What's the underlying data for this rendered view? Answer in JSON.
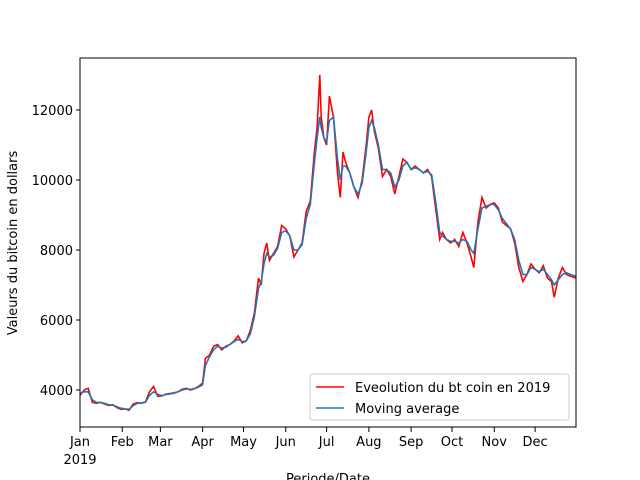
{
  "chart_data": {
    "type": "line",
    "xlabel": "Periode/Date",
    "ylabel": "Valeurs du bitcoin en dollars",
    "x_year_label": "2019",
    "x": [
      0,
      3,
      6,
      9,
      12,
      15,
      18,
      21,
      24,
      27,
      30,
      33,
      36,
      39,
      42,
      45,
      48,
      51,
      54,
      57,
      60,
      63,
      66,
      69,
      72,
      75,
      78,
      81,
      84,
      87,
      90,
      92,
      95,
      98,
      101,
      104,
      107,
      110,
      113,
      116,
      119,
      122,
      125,
      128,
      131,
      133,
      135,
      137,
      139,
      142,
      145,
      148,
      151,
      154,
      157,
      160,
      163,
      166,
      169,
      172,
      174,
      176,
      177,
      179,
      181,
      183,
      186,
      189,
      191,
      193,
      195,
      198,
      201,
      204,
      207,
      210,
      212,
      214,
      216,
      219,
      222,
      225,
      228,
      231,
      234,
      237,
      240,
      243,
      246,
      249,
      252,
      255,
      258,
      261,
      264,
      266,
      269,
      272,
      275,
      278,
      281,
      284,
      287,
      289,
      292,
      295,
      298,
      301,
      304,
      307,
      310,
      313,
      316,
      319,
      322,
      325,
      328,
      331,
      334,
      337,
      340,
      343,
      346,
      348,
      351,
      354,
      357,
      360,
      364
    ],
    "series": [
      {
        "name": "Eveolution du bt coin en 2019",
        "color": "#ff0000",
        "values": [
          3850,
          4000,
          4050,
          3650,
          3620,
          3650,
          3600,
          3560,
          3580,
          3500,
          3450,
          3460,
          3420,
          3600,
          3640,
          3620,
          3660,
          3950,
          4100,
          3820,
          3830,
          3880,
          3900,
          3920,
          3950,
          4020,
          4050,
          4000,
          4040,
          4100,
          4200,
          4900,
          5000,
          5250,
          5300,
          5150,
          5250,
          5300,
          5400,
          5550,
          5350,
          5400,
          5700,
          6200,
          7200,
          7000,
          7900,
          8200,
          7700,
          7900,
          8100,
          8700,
          8600,
          8400,
          7800,
          8000,
          8200,
          9100,
          9400,
          10800,
          11500,
          13000,
          11800,
          11200,
          11000,
          12400,
          11800,
          10200,
          9500,
          10800,
          10500,
          10200,
          9800,
          9500,
          10000,
          11000,
          11800,
          12000,
          11400,
          10900,
          10100,
          10300,
          10100,
          9600,
          10100,
          10600,
          10500,
          10300,
          10400,
          10300,
          10200,
          10300,
          10100,
          9200,
          8300,
          8500,
          8300,
          8200,
          8300,
          8100,
          8500,
          8200,
          7800,
          7500,
          8800,
          9500,
          9200,
          9300,
          9350,
          9200,
          8800,
          8700,
          8600,
          8200,
          7500,
          7100,
          7300,
          7600,
          7450,
          7350,
          7550,
          7200,
          7100,
          6650,
          7200,
          7500,
          7300,
          7250,
          7200
        ]
      },
      {
        "name": "Moving average",
        "color": "#1f77b4",
        "values": [
          3900,
          3950,
          3950,
          3720,
          3650,
          3640,
          3620,
          3580,
          3570,
          3520,
          3480,
          3460,
          3450,
          3550,
          3620,
          3630,
          3650,
          3850,
          3950,
          3880,
          3840,
          3870,
          3890,
          3910,
          3950,
          4000,
          4030,
          4020,
          4040,
          4080,
          4150,
          4700,
          4950,
          5150,
          5250,
          5200,
          5220,
          5300,
          5380,
          5450,
          5380,
          5400,
          5600,
          6100,
          6900,
          7100,
          7600,
          7900,
          7800,
          7850,
          8050,
          8500,
          8550,
          8400,
          8000,
          8000,
          8150,
          8900,
          9300,
          10500,
          11200,
          11800,
          11500,
          11200,
          11100,
          11700,
          11800,
          10600,
          10000,
          10400,
          10400,
          10200,
          9800,
          9600,
          9900,
          10800,
          11500,
          11700,
          11500,
          11000,
          10300,
          10300,
          10200,
          9800,
          10000,
          10400,
          10500,
          10300,
          10350,
          10300,
          10200,
          10250,
          10150,
          9400,
          8500,
          8400,
          8300,
          8250,
          8250,
          8200,
          8300,
          8250,
          8000,
          7900,
          8600,
          9200,
          9250,
          9300,
          9300,
          9150,
          8900,
          8750,
          8600,
          8300,
          7700,
          7300,
          7300,
          7500,
          7450,
          7380,
          7450,
          7300,
          7150,
          7000,
          7150,
          7300,
          7350,
          7300,
          7250
        ]
      }
    ],
    "xlim": [
      0,
      364
    ],
    "xticks": [
      {
        "value": 0,
        "label": "Jan"
      },
      {
        "value": 31,
        "label": "Feb"
      },
      {
        "value": 59,
        "label": "Mar"
      },
      {
        "value": 90,
        "label": "Apr"
      },
      {
        "value": 120,
        "label": "May"
      },
      {
        "value": 151,
        "label": "Jun"
      },
      {
        "value": 181,
        "label": "Jul"
      },
      {
        "value": 212,
        "label": "Aug"
      },
      {
        "value": 243,
        "label": "Sep"
      },
      {
        "value": 273,
        "label": "Oct"
      },
      {
        "value": 304,
        "label": "Nov"
      },
      {
        "value": 334,
        "label": "Dec"
      }
    ],
    "ylim": [
      2943,
      13486
    ],
    "yticks": [
      4000,
      6000,
      8000,
      10000,
      12000
    ],
    "legend": "lower right"
  }
}
